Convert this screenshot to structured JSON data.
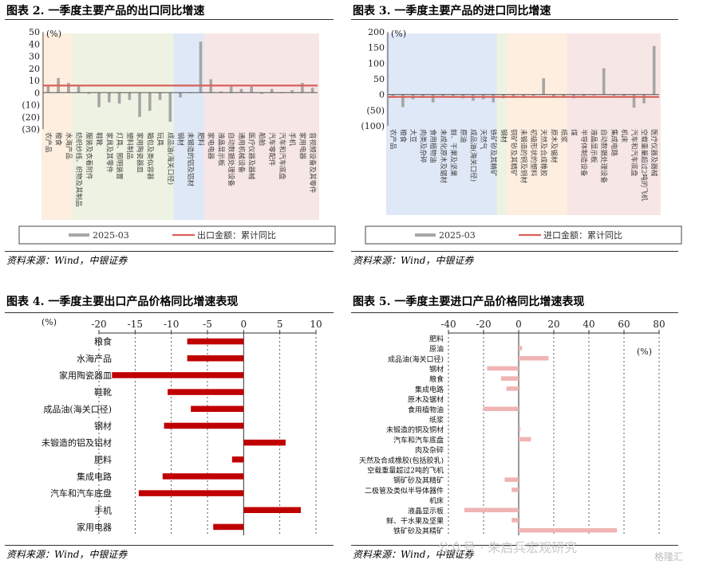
{
  "source_text": "资料来源：Wind，中银证券",
  "watermark": "公众号 · 朱启兵宏观研究",
  "logo_text": "格隆汇",
  "colors": {
    "bar_gray": "#a6a6a6",
    "line_red": "#d9605a",
    "bar_dark_red": "#c00000",
    "bar_pink": "#f0b4b4",
    "bg_peach": "#fdeee0",
    "bg_green": "#eef2e2",
    "bg_blue": "#dfe8f6",
    "bg_pink": "#f7e6e6"
  },
  "charts": [
    {
      "title": "图表 2. 一季度主要产品的出口同比增速",
      "chart_data": {
        "type": "bar",
        "unit": "(%)",
        "ylim": [
          -30,
          50
        ],
        "yticks": [
          "50",
          "40",
          "30",
          "20",
          "10",
          "0",
          "(10)",
          "(20)",
          "(30)"
        ],
        "ytick_values": [
          50,
          40,
          30,
          20,
          10,
          0,
          -10,
          -20,
          -30
        ],
        "categories": [
          "农产品",
          "粮食",
          "水海产品",
          "纺织纱线、织物及其制品",
          "服装及衣着附件",
          "鞋靴",
          "家具及其零件",
          "灯具、照明装置",
          "塑料制品",
          "家用陶瓷器皿",
          "箱包及类似容器",
          "玩具",
          "成品油(海关口径)",
          "钢材",
          "未锻造的铝及铝材",
          "肥料",
          "家电电器",
          "液晶显示板",
          "自动数据处理设备",
          "通用机械设备",
          "医疗仪器及器械",
          "船舶",
          "汽车零配件",
          "汽车和汽车底盘",
          "手机",
          "家用电器",
          "音视频设备及其零件"
        ],
        "series": [
          {
            "name": "2025-03",
            "type": "bar",
            "values": [
              5,
              12,
              8,
              5,
              -1,
              -12,
              -8,
              -9,
              -6,
              -20,
              -15,
              -6,
              -24,
              -4,
              0,
              42,
              11,
              1,
              5,
              3,
              5,
              -1,
              3,
              0,
              2,
              8,
              4
            ]
          },
          {
            "name": "出口金额：累计同比",
            "type": "line",
            "values": [
              5.8,
              5.8,
              5.8,
              5.8,
              5.8,
              5.8,
              5.8,
              5.8,
              5.8,
              5.8,
              5.8,
              5.8,
              5.8,
              5.8,
              5.8,
              5.8,
              5.8,
              5.8,
              5.8,
              5.8,
              5.8,
              5.8,
              5.8,
              5.8,
              5.8,
              5.8,
              5.8
            ]
          }
        ],
        "legend": [
          "2025-03",
          "出口金额：累计同比"
        ],
        "legend_position": "bottom",
        "grid": false
      }
    },
    {
      "title": "图表 3. 一季度主要产品的进口同比增速",
      "chart_data": {
        "type": "bar",
        "unit": "(%)",
        "ylim": [
          -100,
          200
        ],
        "yticks": [
          "200",
          "150",
          "100",
          "50",
          "0",
          "(50)",
          "(100)"
        ],
        "ytick_values": [
          200,
          150,
          100,
          50,
          0,
          -50,
          -100
        ],
        "categories": [
          "农产品",
          "粮食",
          "大豆",
          "肉类及杂碎",
          "食用植物油",
          "未成化原木及锯材",
          "鲜、干果及坚果",
          "原油",
          "成品油(海关口径)",
          "天然气",
          "铁矿砂及其精矿",
          "钢材",
          "铜矿砂及其精矿",
          "未锻造的铜及铜材",
          "初级形状的塑料",
          "天然及合成橡胶",
          "原木及锯材",
          "纸浆",
          "煤",
          "半导体制造设备",
          "液晶显示板",
          "自动数据处理设备",
          "集成电路",
          "机床",
          "汽车和汽车底盘",
          "空载重量超过2吨的飞机",
          "医疗仪器及器械"
        ],
        "series": [
          {
            "name": "2025-03",
            "type": "bar",
            "values": [
              -8,
              -40,
              -15,
              -5,
              -25,
              -8,
              -10,
              -12,
              -20,
              -15,
              -25,
              -12,
              -10,
              -5,
              -4,
              52,
              -8,
              -5,
              -12,
              -6,
              -3,
              84,
              -4,
              -6,
              -42,
              -28,
              155
            ]
          },
          {
            "name": "进口金额：累计同比",
            "type": "line",
            "values": [
              -7.5,
              -7.5,
              -7.5,
              -7.5,
              -7.5,
              -7.5,
              -7.5,
              -7.5,
              -7.5,
              -7.5,
              -7.5,
              -7.5,
              -7.5,
              -7.5,
              -7.5,
              -7.5,
              -7.5,
              -7.5,
              -7.5,
              -7.5,
              -7.5,
              -7.5,
              -7.5,
              -7.5,
              -7.5,
              -7.5,
              -7.5
            ]
          }
        ],
        "legend": [
          "2025-03",
          "进口金额：累计同比"
        ],
        "legend_position": "bottom",
        "grid": false
      }
    },
    {
      "title": "图表 4. 一季度主要出口产品价格同比增速表现",
      "chart_data": {
        "type": "bar",
        "orientation": "horizontal",
        "unit": "(%)",
        "xlim": [
          -20,
          10
        ],
        "xticks": [
          -20,
          -15,
          -10,
          -5,
          0,
          5,
          10
        ],
        "categories": [
          "粮食",
          "水海产品",
          "家用陶瓷器皿",
          "鞋靴",
          "成品油(海关口径)",
          "钢材",
          "未锻造的铝及铝材",
          "肥料",
          "集成电路",
          "汽车和汽车底盘",
          "手机",
          "家用电器"
        ],
        "values": [
          -7.8,
          -7.8,
          -18.2,
          -10.5,
          -7.3,
          -11.0,
          5.8,
          -1.6,
          -11.2,
          -14.5,
          7.9,
          -4.2
        ],
        "grid": true
      }
    },
    {
      "title": "图表 5. 一季度主要进口产品价格同比增速表现",
      "chart_data": {
        "type": "bar",
        "orientation": "horizontal",
        "unit": "(%)",
        "xlim": [
          -40,
          80
        ],
        "xticks": [
          -40,
          -20,
          0,
          20,
          40,
          60,
          80
        ],
        "categories": [
          "肥料",
          "原油",
          "成品油(海关口径)",
          "钢材",
          "粮食",
          "集成电路",
          "原木及锯材",
          "食用植物油",
          "纸浆",
          "未锻造的铜及铜材",
          "汽车和汽车底盘",
          "肉及杂碎",
          "天然及合成橡胶(包括胶乳)",
          "空载重量超过2吨的飞机",
          "钢矿砂及其精矿",
          "二极管及类似半导体器件",
          "机床",
          "液晶显示板",
          "鲜、干水果及坚果",
          "铁矿砂及其精矿"
        ],
        "values": [
          0,
          2,
          17,
          -18,
          -10,
          -7,
          0,
          -20,
          0,
          1,
          7,
          0,
          0,
          0,
          -8,
          -4,
          0,
          -31,
          -4,
          56
        ],
        "grid": true
      }
    }
  ]
}
